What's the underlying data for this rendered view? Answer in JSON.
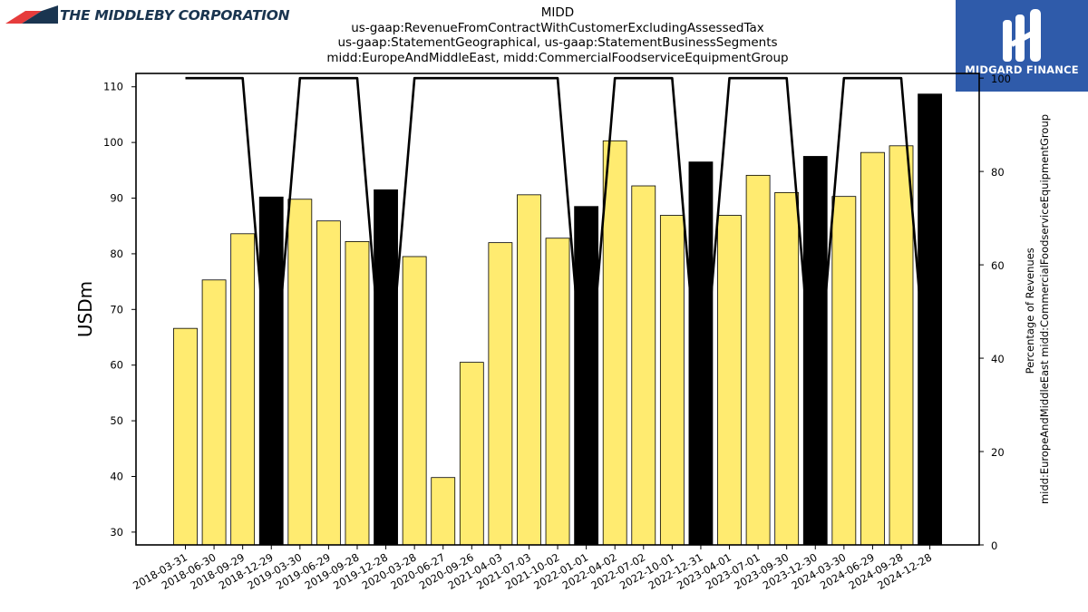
{
  "brand": {
    "left_logo_text": "THE MIDDLEBY CORPORATION",
    "right_logo_text": "MIDGARD FINANCE",
    "left_logo_colors": [
      "#e63c3c",
      "#1a3550"
    ],
    "right_logo_bg": "#2f5baa"
  },
  "chart_data": {
    "type": "bar",
    "title_lines": [
      "MIDD",
      "us-gaap:RevenueFromContractWithCustomerExcludingAssessedTax",
      "us-gaap:StatementGeographical, us-gaap:StatementBusinessSegments",
      "midd:EuropeAndMiddleEast, midd:CommercialFoodserviceEquipmentGroup"
    ],
    "ylabel": "USDm",
    "y2label_lines": [
      "Percentage of Revenues",
      "midd:EuropeAndMiddleEast midd:CommercialFoodserviceEquipmentGroup"
    ],
    "categories": [
      "2018-03-31",
      "2018-06-30",
      "2018-09-29",
      "2018-12-29",
      "2019-03-30",
      "2019-06-29",
      "2019-09-28",
      "2019-12-28",
      "2020-03-28",
      "2020-06-27",
      "2020-09-26",
      "2021-04-03",
      "2021-07-03",
      "2021-10-02",
      "2022-01-01",
      "2022-04-02",
      "2022-07-02",
      "2022-10-01",
      "2022-12-31",
      "2023-04-01",
      "2023-07-01",
      "2023-09-30",
      "2023-12-30",
      "2024-03-30",
      "2024-06-29",
      "2024-09-28",
      "2024-12-28"
    ],
    "values": [
      66.6,
      75.3,
      83.6,
      90.2,
      89.8,
      85.9,
      82.2,
      91.5,
      79.5,
      39.8,
      60.5,
      82.0,
      90.6,
      82.8,
      88.5,
      100.3,
      92.2,
      86.9,
      96.5,
      86.9,
      94.1,
      91.0,
      97.5,
      90.3,
      98.2,
      99.4,
      108.7
    ],
    "bar_highlight": [
      false,
      false,
      false,
      true,
      false,
      false,
      false,
      true,
      false,
      false,
      false,
      false,
      false,
      false,
      true,
      false,
      false,
      false,
      true,
      false,
      false,
      false,
      true,
      false,
      false,
      false,
      true
    ],
    "line_values": [
      100,
      100,
      100,
      27,
      100,
      100,
      100,
      27,
      100,
      100,
      100,
      100,
      100,
      100,
      27,
      100,
      100,
      100,
      27,
      100,
      100,
      100,
      27,
      100,
      100,
      100,
      27
    ],
    "ylim": [
      27.7,
      112.4
    ],
    "yticks": [
      30,
      40,
      50,
      60,
      70,
      80,
      90,
      100,
      110
    ],
    "y2lim": [
      0,
      101
    ],
    "y2ticks": [
      0,
      20,
      40,
      60,
      80,
      100
    ],
    "colors": {
      "bar": "#ffeb70",
      "bar_highlight": "#000000",
      "bar_edge": "#000000",
      "line": "#000000"
    },
    "grid": false,
    "legend": "none"
  }
}
